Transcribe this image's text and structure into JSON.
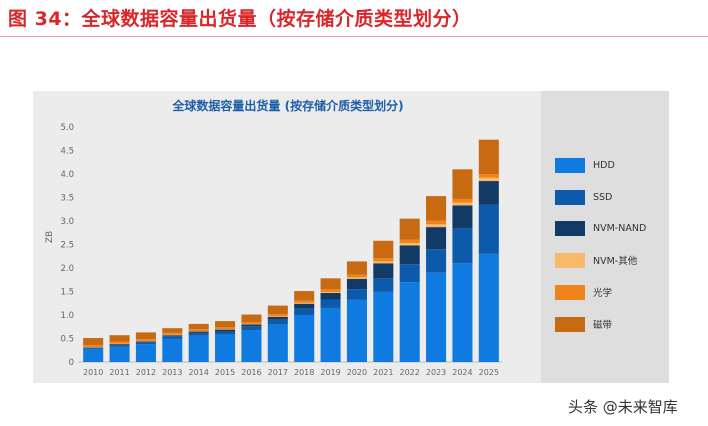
{
  "figure_title": "图 34：全球数据容量出货量（按存储介质类型划分）",
  "watermark": "头条 @未来智库",
  "chart_data": {
    "type": "bar",
    "stacked": true,
    "title": "全球数据容量出货量 (按存储介质类型划分)",
    "xlabel": "",
    "ylabel": "ZB",
    "ylim": [
      0,
      5.0
    ],
    "yticks": [
      "0",
      "0.5",
      "1.0",
      "1.5",
      "2.0",
      "2.5",
      "3.0",
      "3.5",
      "4.0",
      "4.5",
      "5.0"
    ],
    "grid": false,
    "legend_position": "right",
    "categories": [
      "2010",
      "2011",
      "2012",
      "2013",
      "2014",
      "2015",
      "2016",
      "2017",
      "2018",
      "2019",
      "2020",
      "2021",
      "2022",
      "2023",
      "2024",
      "2025"
    ],
    "series": [
      {
        "name": "HDD",
        "color": "#0f7be0",
        "values": [
          0.28,
          0.33,
          0.38,
          0.5,
          0.56,
          0.58,
          0.68,
          0.8,
          1.0,
          1.15,
          1.33,
          1.5,
          1.7,
          1.9,
          2.1,
          2.3
        ]
      },
      {
        "name": "SSD",
        "color": "#0d5aab",
        "values": [
          0.02,
          0.03,
          0.04,
          0.05,
          0.06,
          0.07,
          0.08,
          0.1,
          0.14,
          0.18,
          0.22,
          0.28,
          0.38,
          0.5,
          0.75,
          1.05
        ]
      },
      {
        "name": "NVM-NAND",
        "color": "#113a66",
        "values": [
          0.01,
          0.02,
          0.02,
          0.02,
          0.03,
          0.04,
          0.04,
          0.06,
          0.1,
          0.14,
          0.22,
          0.32,
          0.4,
          0.47,
          0.48,
          0.5
        ]
      },
      {
        "name": "NVM-其他",
        "color": "#f8b96b",
        "values": [
          0.01,
          0.01,
          0.01,
          0.01,
          0.01,
          0.01,
          0.01,
          0.01,
          0.02,
          0.02,
          0.03,
          0.04,
          0.05,
          0.06,
          0.06,
          0.07
        ]
      },
      {
        "name": "光学",
        "color": "#f0831a",
        "values": [
          0.04,
          0.04,
          0.04,
          0.04,
          0.04,
          0.04,
          0.04,
          0.05,
          0.05,
          0.06,
          0.06,
          0.07,
          0.07,
          0.08,
          0.08,
          0.08
        ]
      },
      {
        "name": "磁带",
        "color": "#c76a12",
        "values": [
          0.15,
          0.14,
          0.14,
          0.1,
          0.11,
          0.13,
          0.16,
          0.18,
          0.2,
          0.23,
          0.28,
          0.37,
          0.45,
          0.52,
          0.63,
          0.73
        ]
      }
    ]
  }
}
